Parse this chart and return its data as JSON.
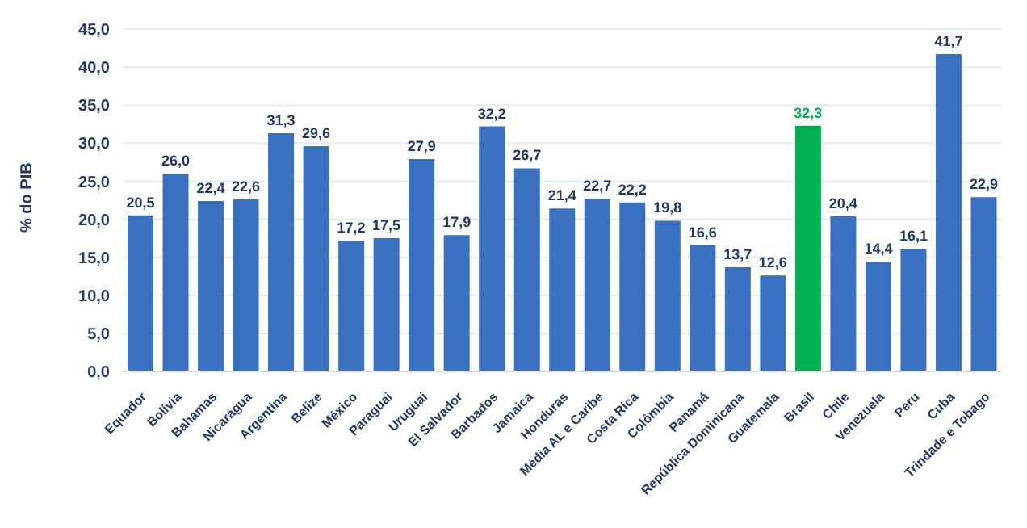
{
  "chart_data": {
    "type": "bar",
    "ylabel": "% do PIB",
    "categories": [
      "Equador",
      "Bolívia",
      "Bahamas",
      "Nicarágua",
      "Argentina",
      "Belize",
      "México",
      "Paraguai",
      "Uruguai",
      "El Salvador",
      "Barbados",
      "Jamaica",
      "Honduras",
      "Média AL e Caribe",
      "Costa Rica",
      "Colômbia",
      "Panamá",
      "República Dominicana",
      "Guatemala",
      "Brasil",
      "Chile",
      "Venezuela",
      "Peru",
      "Cuba",
      "Trindade e Tobago"
    ],
    "values": [
      20.5,
      26.0,
      22.4,
      22.6,
      31.3,
      29.6,
      17.2,
      17.5,
      27.9,
      17.9,
      32.2,
      26.7,
      21.4,
      22.7,
      22.2,
      19.8,
      16.6,
      13.7,
      12.6,
      32.3,
      20.4,
      14.4,
      16.1,
      41.7,
      22.9
    ],
    "colors": [
      "#3a70c0",
      "#3a70c0",
      "#3a70c0",
      "#3a70c0",
      "#3a70c0",
      "#3a70c0",
      "#3a70c0",
      "#3a70c0",
      "#3a70c0",
      "#3a70c0",
      "#3a70c0",
      "#3a70c0",
      "#3a70c0",
      "#3a70c0",
      "#3a70c0",
      "#3a70c0",
      "#3a70c0",
      "#3a70c0",
      "#3a70c0",
      "#00b050",
      "#3a70c0",
      "#3a70c0",
      "#3a70c0",
      "#3a70c0",
      "#3a70c0"
    ],
    "value_labels": [
      "20,5",
      "26,0",
      "22,4",
      "22,6",
      "31,3",
      "29,6",
      "17,2",
      "17,5",
      "27,9",
      "17,9",
      "32,2",
      "26,7",
      "21,4",
      "22,7",
      "22,2",
      "19,8",
      "16,6",
      "13,7",
      "12,6",
      "32,3",
      "20,4",
      "14,4",
      "16,1",
      "41,7",
      "22,9"
    ],
    "ylim": [
      0,
      45
    ],
    "yticks": [
      {
        "value": 0,
        "label": "0,0"
      },
      {
        "value": 5,
        "label": "5,0"
      },
      {
        "value": 10,
        "label": "10,0"
      },
      {
        "value": 15,
        "label": "15,0"
      },
      {
        "value": 20,
        "label": "20,0"
      },
      {
        "value": 25,
        "label": "25,0"
      },
      {
        "value": 30,
        "label": "30,0"
      },
      {
        "value": 35,
        "label": "35,0"
      },
      {
        "value": 40,
        "label": "40,0"
      },
      {
        "value": 45,
        "label": "45,0"
      }
    ],
    "grid": "y",
    "legend": false
  }
}
